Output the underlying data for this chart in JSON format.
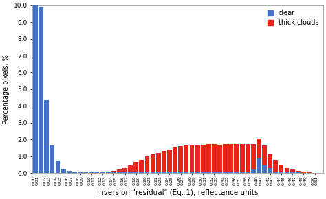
{
  "categories": [
    "0.00",
    "0.01",
    "0.02",
    "0.03",
    "0.04",
    "0.05",
    "0.06",
    "0.07",
    "0.08",
    "0.09",
    "0.10",
    "0.11",
    "0.12",
    "0.13",
    "0.14",
    "0.15",
    "0.16",
    "0.17",
    "0.18",
    "0.19",
    "0.20",
    "0.21",
    "0.22",
    "0.23",
    "0.24",
    "0.25",
    "0.26",
    "0.27",
    "0.28",
    "0.29",
    "0.30",
    "0.31",
    "0.32",
    "0.33",
    "0.34",
    "0.35",
    "0.36",
    "0.37",
    "0.38",
    "0.39",
    "0.40",
    "0.41",
    "0.42",
    "0.43",
    "0.44",
    "0.45",
    "0.46",
    "0.47",
    "0.48",
    "0.49",
    "0.50",
    "0.51"
  ],
  "clear": [
    10.0,
    9.9,
    4.4,
    1.65,
    0.75,
    0.25,
    0.15,
    0.1,
    0.08,
    0.07,
    0.06,
    0.06,
    0.05,
    0.05,
    0.05,
    0.05,
    0.05,
    0.04,
    0.04,
    0.04,
    0.04,
    0.04,
    0.04,
    0.04,
    0.04,
    0.04,
    0.04,
    0.04,
    0.04,
    0.04,
    0.04,
    0.04,
    0.04,
    0.04,
    0.04,
    0.04,
    0.04,
    0.04,
    0.04,
    0.2,
    0.9,
    0.45,
    0.3,
    0.06,
    0.06,
    0.05,
    0.04,
    0.04,
    0.03,
    0.03,
    0.02,
    0.01
  ],
  "thick_clouds": [
    0.2,
    0.15,
    0.1,
    0.08,
    0.07,
    0.06,
    0.05,
    0.04,
    0.04,
    0.04,
    0.05,
    0.06,
    0.07,
    0.1,
    0.15,
    0.2,
    0.3,
    0.45,
    0.65,
    0.8,
    1.0,
    1.1,
    1.2,
    1.3,
    1.4,
    1.55,
    1.6,
    1.65,
    1.65,
    1.65,
    1.7,
    1.72,
    1.72,
    1.7,
    1.72,
    1.72,
    1.72,
    1.72,
    1.72,
    1.72,
    2.05,
    1.65,
    1.1,
    0.8,
    0.5,
    0.3,
    0.2,
    0.12,
    0.08,
    0.05,
    0.03,
    0.02
  ],
  "clear_color": "#4472c4",
  "thick_color": "#e8231a",
  "xlabel": "Inversion \"residual\" (Eq. 1), reflectance units",
  "ylabel": "Percentage pixels, %",
  "ylim": [
    0,
    10.0
  ],
  "yticks": [
    0.0,
    1.0,
    2.0,
    3.0,
    4.0,
    5.0,
    6.0,
    7.0,
    8.0,
    9.0,
    10.0
  ],
  "legend_labels": [
    "clear",
    "thick clouds"
  ],
  "background_color": "#ffffff",
  "figsize": [
    4.74,
    2.9
  ],
  "dpi": 100
}
